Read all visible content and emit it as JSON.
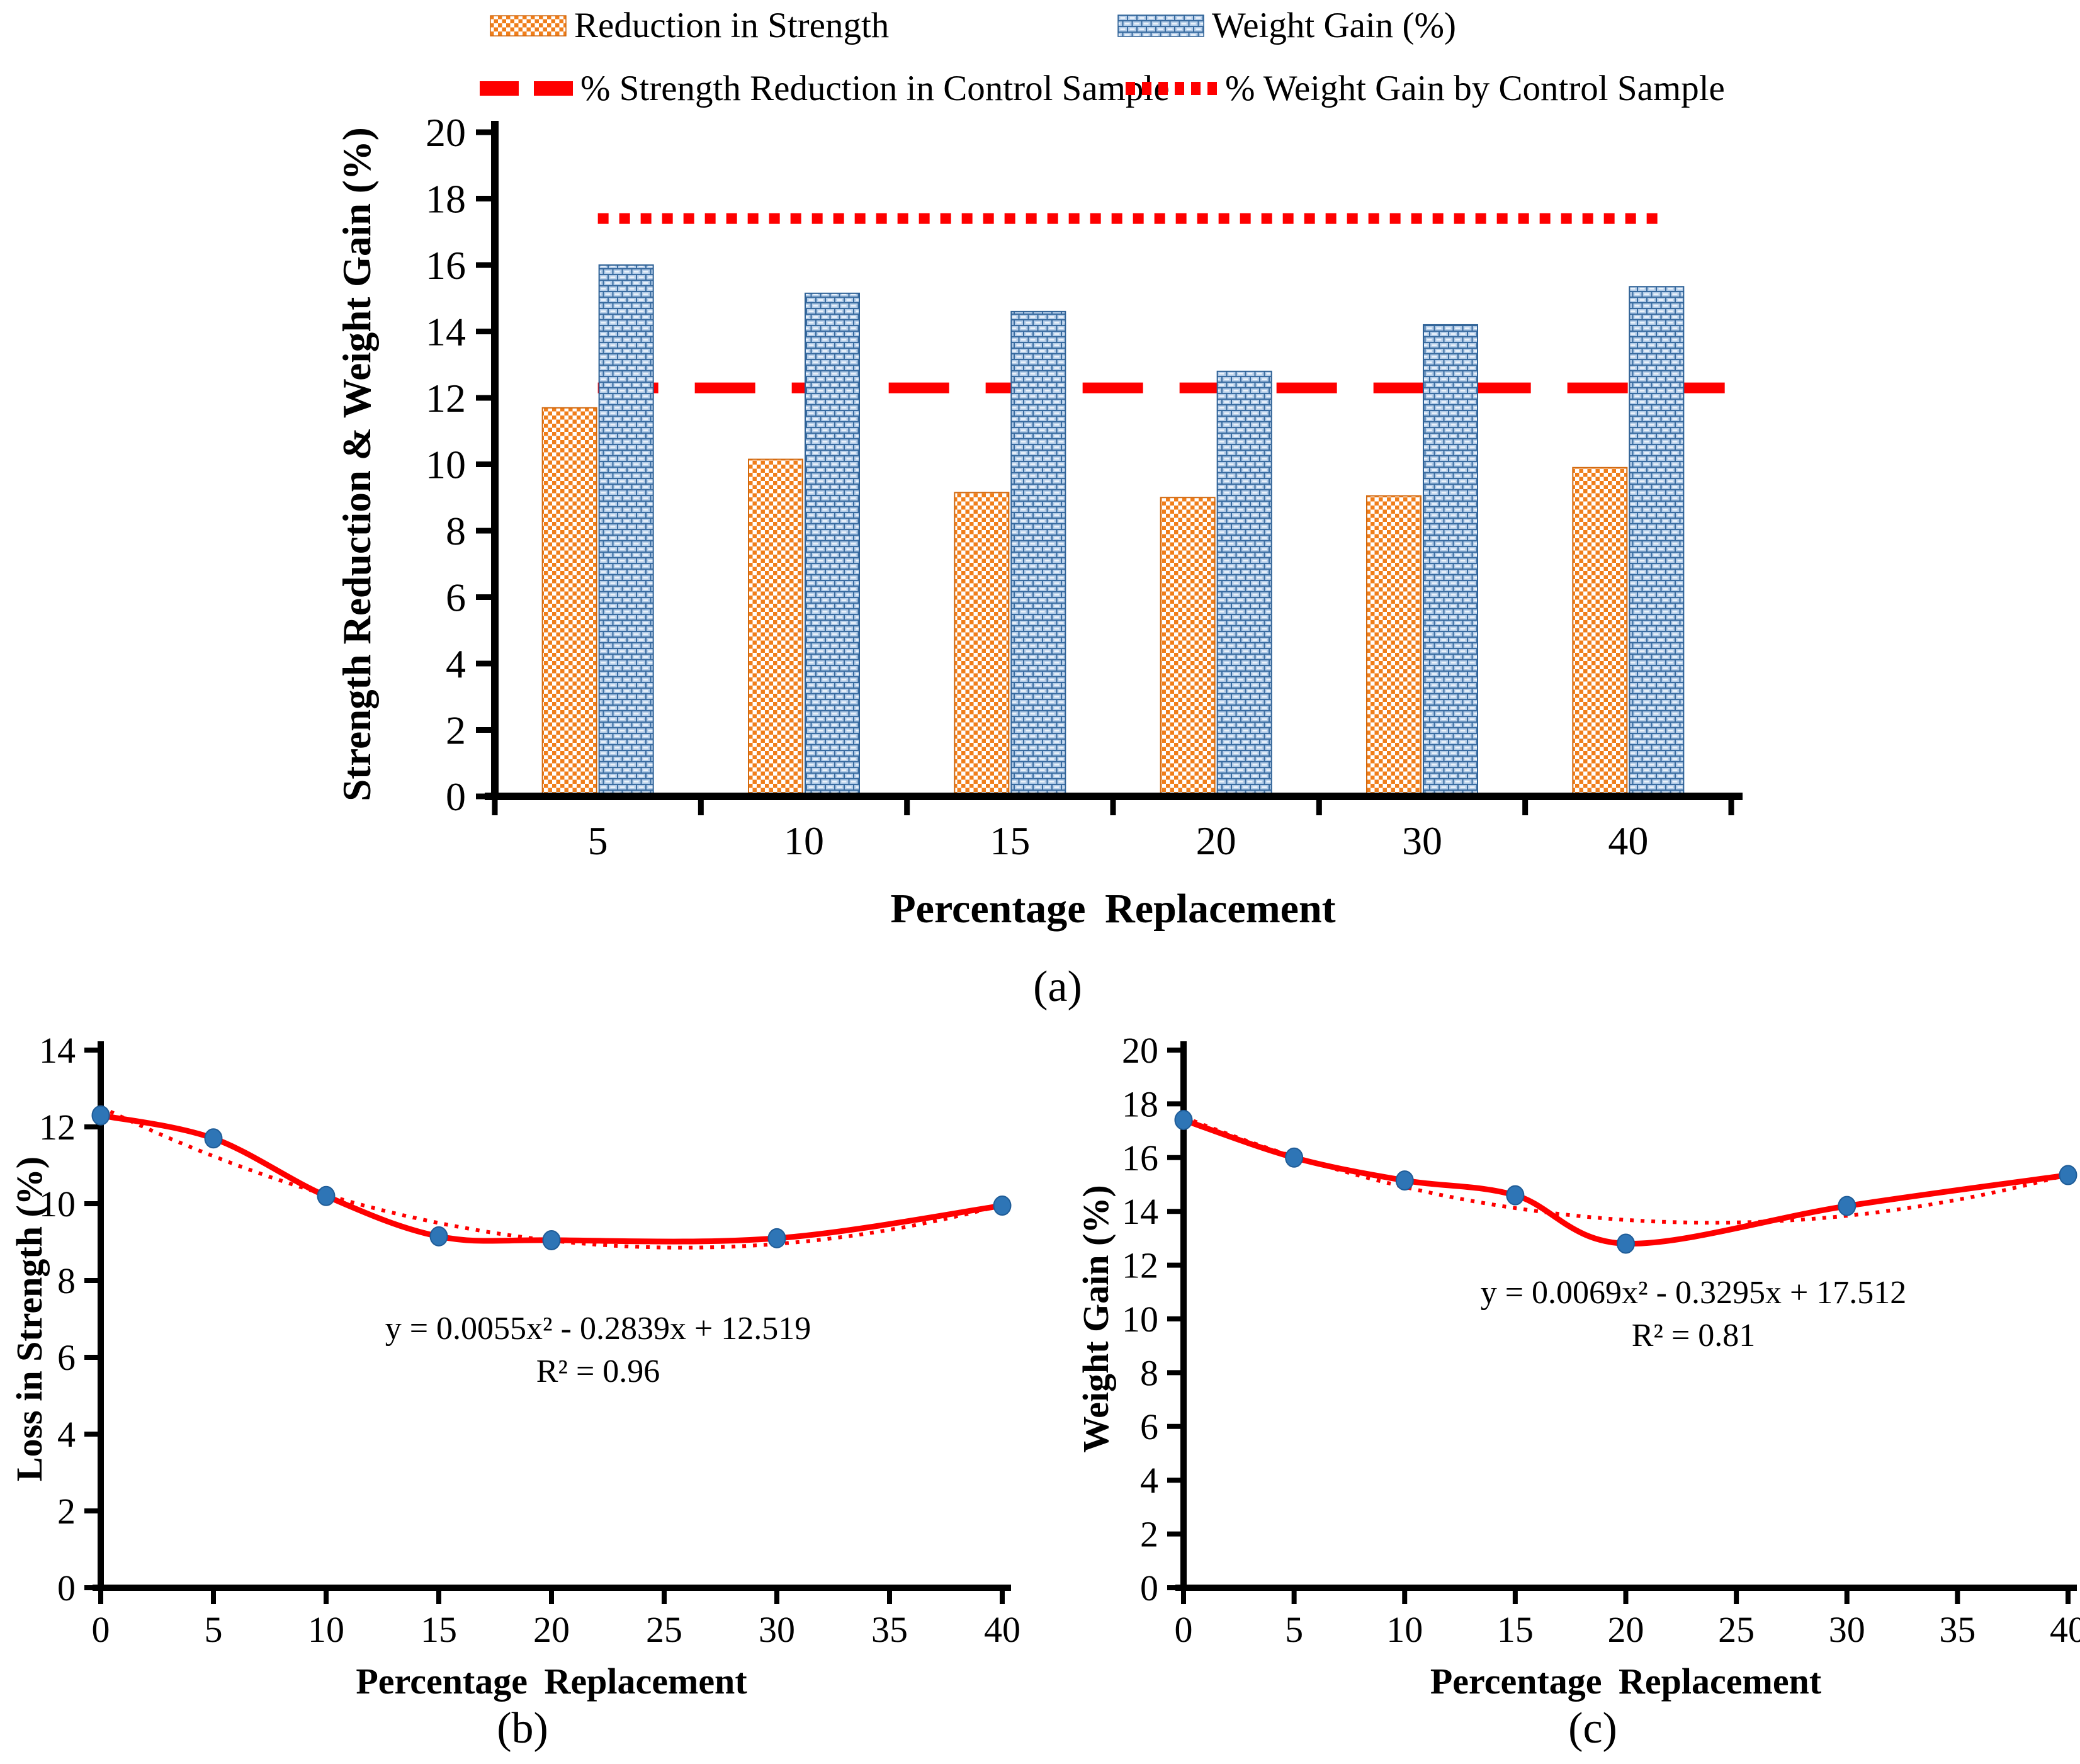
{
  "figure": {
    "captions": {
      "a": "(a)",
      "b": "(b)",
      "c": "(c)"
    }
  },
  "colors": {
    "orange": "#F07E1A",
    "orange_edge": "#D2690F",
    "brick_fill": "#B3CCE8",
    "brick_line": "#3A6CA0",
    "brick_dash": "#EDF4FB",
    "brick_edge": "#2E6196",
    "red": "#FE0000",
    "marker": "#2E75B6",
    "marker_edge": "#1F5C97",
    "axis": "#000000"
  },
  "legend": {
    "items": [
      {
        "label": "Reduction in Strength",
        "swatch": "orange-checker"
      },
      {
        "label": "Weight Gain (%)",
        "swatch": "blue-brick"
      },
      {
        "label": "% Strength Reduction in Control Sample",
        "swatch": "red-dashed-line"
      },
      {
        "label": "% Weight Gain by Control Sample",
        "swatch": "red-dotted-line"
      }
    ]
  },
  "chart_data": [
    {
      "id": "a",
      "type": "bar",
      "xlabel": "Percentage  Replacement",
      "ylabel": "Strength Reduction & Weight Gain (%)",
      "categories": [
        "5",
        "10",
        "15",
        "20",
        "30",
        "40"
      ],
      "series": [
        {
          "name": "Reduction in Strength",
          "values": [
            11.7,
            10.15,
            9.15,
            9.0,
            9.05,
            9.9
          ]
        },
        {
          "name": "Weight Gain (%)",
          "values": [
            16.0,
            15.15,
            14.6,
            12.8,
            14.2,
            15.35
          ]
        }
      ],
      "ref_lines": [
        {
          "name": "% Strength Reduction in Control Sample",
          "value": 12.3,
          "style": "dashed"
        },
        {
          "name": "% Weight Gain by Control Sample",
          "value": 17.4,
          "style": "dotted"
        }
      ],
      "ylim": [
        0,
        20
      ],
      "ytick": 2,
      "legend_position": "top",
      "grid": false
    },
    {
      "id": "b",
      "type": "scatter",
      "xlabel": "Percentage  Replacement",
      "ylabel": "Loss in Strength (%)",
      "x": [
        0,
        5,
        10,
        15,
        20,
        30,
        40
      ],
      "y": [
        12.3,
        11.7,
        10.2,
        9.15,
        9.05,
        9.1,
        9.95
      ],
      "trendline": {
        "type": "polynomial",
        "a": 0.0055,
        "b": -0.2839,
        "c": 12.519
      },
      "equation": "y = 0.0055x² - 0.2839x + 12.519",
      "r_squared": "R² = 0.96",
      "xlim": [
        0,
        40
      ],
      "xtick": 5,
      "ylim": [
        0,
        14
      ],
      "ytick": 2,
      "grid": false
    },
    {
      "id": "c",
      "type": "scatter",
      "xlabel": "Percentage  Replacement",
      "ylabel": "Weight Gain (%)",
      "x": [
        0,
        5,
        10,
        15,
        20,
        30,
        40
      ],
      "y": [
        17.4,
        16.0,
        15.15,
        14.6,
        12.8,
        14.2,
        15.35
      ],
      "trendline": {
        "type": "polynomial",
        "a": 0.0069,
        "b": -0.3295,
        "c": 17.512
      },
      "equation": "y = 0.0069x² - 0.3295x + 17.512",
      "r_squared": "R² = 0.81",
      "xlim": [
        0,
        40
      ],
      "xtick": 5,
      "ylim": [
        0,
        20
      ],
      "ytick": 2,
      "grid": false
    }
  ]
}
